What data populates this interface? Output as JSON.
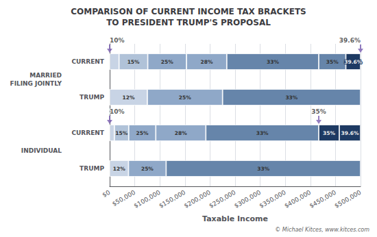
{
  "chart_data": {
    "type": "bar",
    "orientation": "horizontal",
    "stacked": true,
    "title": "COMPARISON OF CURRENT INCOME TAX BRACKETS\nTO PRESIDENT TRUMP'S PROPOSAL",
    "xlabel": "Taxable Income",
    "copyright": "© Michael Kitces, www.kitces.com",
    "categories": [
      "CURRENT",
      "TRUMP",
      "CURRENT",
      "TRUMP"
    ],
    "groups": [
      "MARRIED\nFILING JOINTLY",
      "MARRIED\nFILING JOINTLY",
      "INDIVIDUAL",
      "INDIVIDUAL"
    ],
    "bars": [
      {
        "values": [
          18650,
          57250,
          77200,
          80250,
          183350,
          54000,
          29300
        ],
        "rates": [
          null,
          "15%",
          "25%",
          "28%",
          "33%",
          "35%",
          "39.6%"
        ],
        "colors": [
          "#c8d4e5",
          "#b0c2d8",
          "#8fa8c8",
          "#8fa8c8",
          "#6685aa",
          "#6685aa",
          "#1e3a63"
        ],
        "annotations": [
          {
            "text": "10%",
            "x": 0
          },
          {
            "text": "39.6%",
            "x": 500000
          }
        ]
      },
      {
        "values": [
          75000,
          150000,
          275000
        ],
        "rates": [
          "12%",
          "25%",
          "33%"
        ],
        "colors": [
          "#c8d4e5",
          "#8fa8c8",
          "#6685aa"
        ]
      },
      {
        "values": [
          9325,
          28625,
          53950,
          99750,
          225050,
          40900,
          42400
        ],
        "rates": [
          null,
          "15%",
          "25%",
          "28%",
          "33%",
          "35%",
          "39.6%"
        ],
        "colors": [
          "#c8d4e5",
          "#b0c2d8",
          "#8fa8c8",
          "#8fa8c8",
          "#6685aa",
          "#1e3a63",
          "#1e3a63"
        ],
        "annotations": [
          {
            "text": "10%",
            "x": 0
          },
          {
            "text": "35%",
            "x": 416700
          }
        ]
      },
      {
        "values": [
          37500,
          75000,
          387500
        ],
        "rates": [
          "12%",
          "25%",
          "33%"
        ],
        "colors": [
          "#c8d4e5",
          "#8fa8c8",
          "#6685aa"
        ]
      }
    ],
    "xlim": [
      0,
      500000
    ],
    "xticks": [
      {
        "value": 0,
        "label": "$0"
      },
      {
        "value": 50000,
        "label": "$50,000"
      },
      {
        "value": 100000,
        "label": "$100,000"
      },
      {
        "value": 150000,
        "label": "$150,000"
      },
      {
        "value": 200000,
        "label": "$200,000"
      },
      {
        "value": 250000,
        "label": "$250,000"
      },
      {
        "value": 300000,
        "label": "$300,000"
      },
      {
        "value": 350000,
        "label": "$350,000"
      },
      {
        "value": 400000,
        "label": "$400,000"
      },
      {
        "value": 450000,
        "label": "$450,000"
      },
      {
        "value": 500000,
        "label": "$500,000"
      }
    ],
    "grid": true
  }
}
